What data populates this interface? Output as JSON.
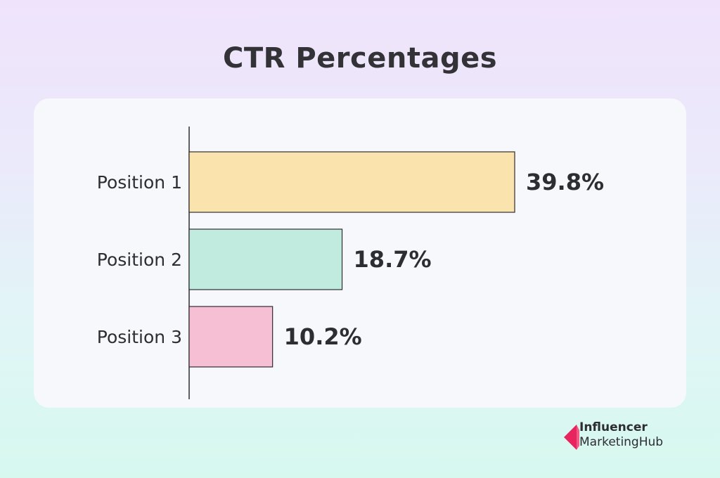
{
  "title": "CTR Percentages",
  "chart_data": {
    "type": "bar",
    "orientation": "horizontal",
    "title": "CTR Percentages",
    "categories": [
      "Position 1",
      "Position 2",
      "Position 3"
    ],
    "values": [
      39.8,
      18.7,
      10.2
    ],
    "value_labels": [
      "39.8%",
      "18.7%",
      "10.2%"
    ],
    "colors": [
      "#fae3ac",
      "#c0ebde",
      "#f6bfd3"
    ],
    "xlabel": "",
    "ylabel": "",
    "xlim": [
      0,
      80
    ],
    "grid": false,
    "legend": "none"
  },
  "brand": {
    "line1": "Influencer",
    "line2_part1": "Marketing",
    "line2_part2": "Hub",
    "icon": "influencer-marketing-hub-logo-icon",
    "colors": [
      "#e8245f",
      "#f25a86"
    ]
  }
}
